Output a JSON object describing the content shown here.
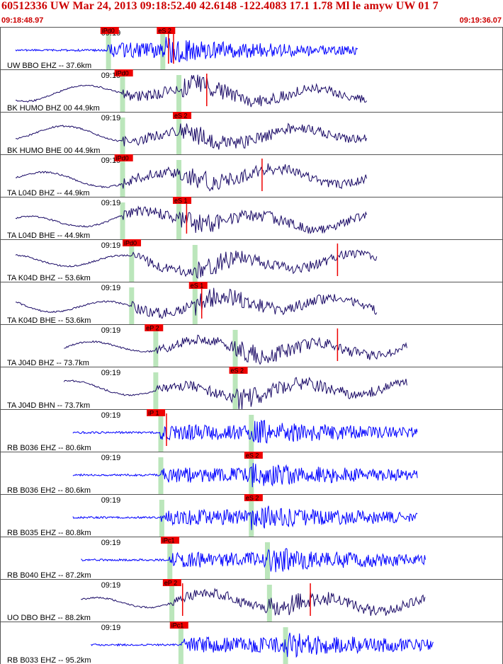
{
  "header": {
    "title": "60512336 UW Mar 24, 2013 09:18:52.40   42.6148 -122.4083 17.1 1.78 Ml le amyw UW 01   7",
    "time_start": "09:18:48.97",
    "time_end": "09:19:36.07"
  },
  "colors": {
    "header_text": "#cc0000",
    "trace_blue": "#0000ff",
    "trace_navy": "#1a0a66",
    "pick_box": "#ee0000",
    "pick_marker": "#bbe6bb",
    "panel_border": "#555555"
  },
  "chart_data": {
    "type": "seismogram",
    "time_window": {
      "start": "09:18:48.97",
      "end": "09:19:36.07"
    },
    "minute_label": "09:19",
    "channels": [
      {
        "label": "UW BBO EHZ -- 37.6km",
        "color": "blue",
        "picks": [
          {
            "label": "iPd0",
            "t": 9.0
          },
          {
            "label": "eS 2",
            "t": 14.6
          }
        ],
        "green_markers": [
          9.2,
          14.6
        ],
        "red_marks": [
          15.7,
          15.2
        ],
        "start": 0.0,
        "end": 34.0
      },
      {
        "label": "BK HUMO BHZ 00 44.9km",
        "color": "navy",
        "picks": [
          {
            "label": "iPd0",
            "t": 10.4
          }
        ],
        "green_markers": [
          10.6,
          16.2
        ],
        "red_marks": [
          19.0
        ],
        "start": 0.0,
        "end": 35.0
      },
      {
        "label": "BK HUMO BHE 00 44.9km",
        "color": "navy",
        "picks": [
          {
            "label": "eS 2",
            "t": 16.2
          }
        ],
        "green_markers": [
          10.6,
          16.2
        ],
        "red_marks": [],
        "start": 0.0,
        "end": 35.0
      },
      {
        "label": "TA L04D BHZ -- 44.9km",
        "color": "navy",
        "picks": [
          {
            "label": "iPd0",
            "t": 10.4
          }
        ],
        "green_markers": [
          10.6,
          16.2
        ],
        "red_marks": [
          24.5
        ],
        "start": 0.0,
        "end": 35.0
      },
      {
        "label": "TA L04D BHE -- 44.9km",
        "color": "navy",
        "picks": [
          {
            "label": "eS 1",
            "t": 16.2
          }
        ],
        "green_markers": [
          10.6,
          16.2
        ],
        "red_marks": [
          17.0
        ],
        "start": 0.0,
        "end": 35.0
      },
      {
        "label": "TA K04D BHZ -- 53.6km",
        "color": "navy",
        "picks": [
          {
            "label": "iPd0",
            "t": 11.2
          }
        ],
        "green_markers": [
          11.5,
          17.8
        ],
        "red_marks": [
          32.0
        ],
        "start": 0.0,
        "end": 36.0
      },
      {
        "label": "TA K04D BHE -- 53.6km",
        "color": "navy",
        "picks": [
          {
            "label": "eS 1",
            "t": 17.8
          }
        ],
        "green_markers": [
          11.5,
          17.8
        ],
        "red_marks": [
          18.5
        ],
        "start": 0.0,
        "end": 36.0
      },
      {
        "label": "TA J04D BHZ -- 73.7km",
        "color": "navy",
        "picks": [
          {
            "label": "eP 2",
            "t": 13.4
          }
        ],
        "green_markers": [
          13.9,
          21.8
        ],
        "red_marks": [
          32.0
        ],
        "start": 4.8,
        "end": 39.0
      },
      {
        "label": "TA J04D BHN -- 73.7km",
        "color": "navy",
        "picks": [
          {
            "label": "eS 2",
            "t": 21.8
          }
        ],
        "green_markers": [
          13.9,
          21.8
        ],
        "red_marks": [],
        "start": 4.8,
        "end": 39.0
      },
      {
        "label": "RB B036 EHZ -- 80.6km",
        "color": "blue",
        "picks": [
          {
            "label": "iP 1",
            "t": 13.6
          }
        ],
        "green_markers": [
          14.4,
          23.4
        ],
        "red_marks": [
          15.0
        ],
        "start": 5.7,
        "end": 40.0
      },
      {
        "label": "RB B036 EH2 -- 80.6km",
        "color": "blue",
        "picks": [
          {
            "label": "eS 2",
            "t": 23.3
          }
        ],
        "green_markers": [
          14.4,
          23.4
        ],
        "red_marks": [],
        "start": 5.7,
        "end": 40.0
      },
      {
        "label": "RB B035 EHZ -- 80.8km",
        "color": "blue",
        "picks": [
          {
            "label": "eS 2",
            "t": 23.3
          }
        ],
        "green_markers": [
          14.5,
          23.4
        ],
        "red_marks": [],
        "start": 5.7,
        "end": 40.0
      },
      {
        "label": "RB B040 EHZ -- 87.2km",
        "color": "blue",
        "picks": [
          {
            "label": "iPc1",
            "t": 15.0
          }
        ],
        "green_markers": [
          15.3,
          25.0
        ],
        "red_marks": [],
        "start": 6.5,
        "end": 40.8
      },
      {
        "label": "UO DBO BHZ -- 88.2km",
        "color": "navy",
        "picks": [
          {
            "label": "eP 2",
            "t": 15.2
          }
        ],
        "green_markers": [
          15.5,
          25.2
        ],
        "red_marks": [
          16.6,
          29.3
        ],
        "start": 6.5,
        "end": 40.8
      },
      {
        "label": "RB B033 EHZ -- 95.2km",
        "color": "blue",
        "picks": [
          {
            "label": "iPc1",
            "t": 15.9
          }
        ],
        "green_markers": [
          16.4,
          26.8
        ],
        "red_marks": [],
        "start": 7.5,
        "end": 41.5
      }
    ]
  }
}
